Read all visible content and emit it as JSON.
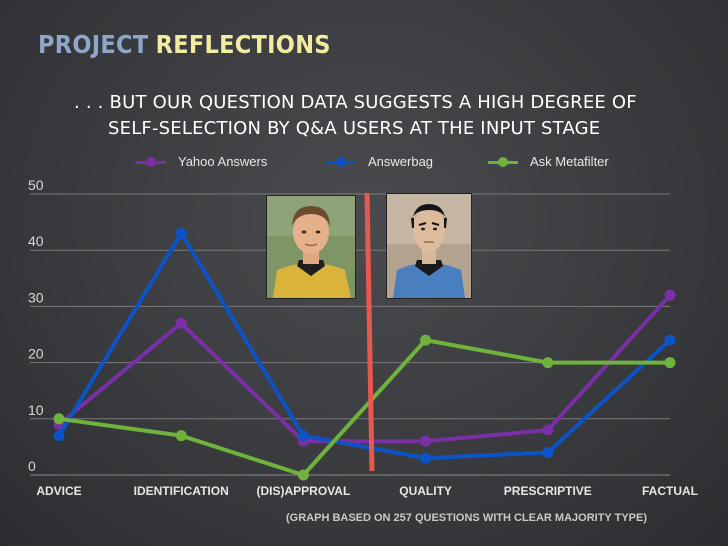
{
  "slide": {
    "title_part1": "PROJECT",
    "title_part2": "REFLECTIONS",
    "subtitle_line1": ". . . BUT OUR QUESTION DATA SUGGESTS A HIGH DEGREE OF",
    "subtitle_line2": "SELF-SELECTION BY Q&A USERS AT THE INPUT STAGE",
    "footnote": "(GRAPH BASED ON 257 QUESTIONS WITH CLEAR MAJORITY TYPE)"
  },
  "colors": {
    "title_accent_1": "#8ea6c9",
    "title_accent_2": "#f2eca0",
    "divider": "#e8584f"
  },
  "images": {
    "left_photo": "portrait-yellow-uniform",
    "right_photo": "portrait-blue-uniform"
  },
  "chart_data": {
    "type": "line",
    "categories": [
      "ADVICE",
      "IDENTIFICATION",
      "(DIS)APPROVAL",
      "QUALITY",
      "PRESCRIPTIVE",
      "FACTUAL"
    ],
    "series": [
      {
        "name": "Yahoo Answers",
        "color": "#7b2fa6",
        "values": [
          9,
          27,
          6,
          6,
          8,
          32
        ]
      },
      {
        "name": "Answerbag",
        "color": "#0c53c6",
        "values": [
          7,
          43,
          7,
          3,
          4,
          24
        ]
      },
      {
        "name": "Ask Metafilter",
        "color": "#6fb33c",
        "values": [
          10,
          7,
          0,
          24,
          20,
          20
        ]
      }
    ],
    "ylim": [
      0,
      50
    ],
    "yticks": [
      0,
      10,
      20,
      30,
      40,
      50
    ],
    "grid": true,
    "legend_position": "top",
    "divider_between": [
      "(DIS)APPROVAL",
      "QUALITY"
    ]
  }
}
